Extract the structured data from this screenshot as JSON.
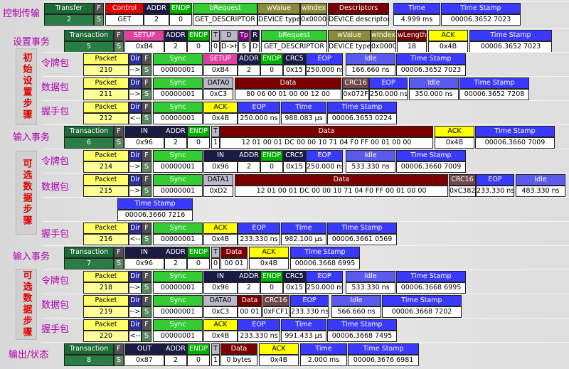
{
  "labels": [
    "控制传输",
    "设置事务",
    "令牌包",
    "数据包",
    "握手包",
    "输入事务",
    "令牌包",
    "数据包",
    "握手包",
    "输入事务",
    "令牌包",
    "数据包",
    "握手包",
    "输出/状态"
  ],
  "notes": [
    "初始设置步骤",
    "可选数据步骤",
    "可选数据步骤"
  ],
  "rows": [
    {
      "cells": [
        {
          "header": "Transfer",
          "value": "2"
        },
        {
          "header": "F",
          "value": "S"
        },
        {
          "header": "Control",
          "value": "GET"
        },
        {
          "header": "ADDR",
          "value": "2"
        },
        {
          "header": "ENDP",
          "value": "0"
        },
        {
          "header": "bRequest",
          "value": "GET_DESCRIPTOR"
        },
        {
          "header": "wValue",
          "value": "DEVICE type"
        },
        {
          "header": "wIndex",
          "value": "0x0000"
        },
        {
          "header": "Descriptors",
          "value": "DEVICE descriptor"
        },
        {
          "header": "Time",
          "value": "4.999 ms"
        },
        {
          "header": "Time Stamp",
          "value": "00006.3652 7023"
        }
      ]
    },
    {
      "cells": [
        {
          "header": "Transaction",
          "value": "5"
        },
        {
          "header": "F",
          "value": "S"
        },
        {
          "header": "SETUP",
          "value": "0xB4"
        },
        {
          "header": "ADDR",
          "value": "2"
        },
        {
          "header": "ENDP",
          "value": "0"
        },
        {
          "header": "T",
          "value": "0"
        },
        {
          "header": "D",
          "value": "D->H"
        },
        {
          "header": "Tp",
          "value": "S"
        },
        {
          "header": "R",
          "value": "D"
        },
        {
          "header": "bRequest",
          "value": "GET_DESCRIPTOR"
        },
        {
          "header": "wValue",
          "value": "DEVICE type"
        },
        {
          "header": "wIndex",
          "value": "0x0000"
        },
        {
          "header": "wLength",
          "value": "18"
        },
        {
          "header": "ACK",
          "value": "0x4B"
        },
        {
          "header": "Time Stamp",
          "value": "00006.3652 7023"
        }
      ]
    },
    {
      "cells": [
        {
          "header": "Packet",
          "value": "210"
        },
        {
          "header": "Dir",
          "value": "-->"
        },
        {
          "header": "F",
          "value": "S"
        },
        {
          "header": "Sync",
          "value": "00000001"
        },
        {
          "header": "SETUP",
          "value": "0xB4"
        },
        {
          "header": "ADDR",
          "value": "2"
        },
        {
          "header": "ENDP",
          "value": "0"
        },
        {
          "header": "CRC5",
          "value": "0x15"
        },
        {
          "header": "EOP",
          "value": "250.000 ns"
        },
        {
          "header": "Idle",
          "value": "166.660 ns"
        },
        {
          "header": "Time Stamp",
          "value": "00006.3652 7023"
        }
      ]
    },
    {
      "cells": [
        {
          "header": "Packet",
          "value": "211"
        },
        {
          "header": "Dir",
          "value": "-->"
        },
        {
          "header": "F",
          "value": "S"
        },
        {
          "header": "Sync",
          "value": "00000001"
        },
        {
          "header": "DATA0",
          "value": "0xC3"
        },
        {
          "header": "Data",
          "value": "80 06 00 01 00 00 12 00"
        },
        {
          "header": "CRC16",
          "value": "0x072F"
        },
        {
          "header": "EOP",
          "value": "250.000 ns"
        },
        {
          "header": "Idle",
          "value": "350.000 ns"
        },
        {
          "header": "Time Stamp",
          "value": "00006.3652 7208"
        }
      ]
    },
    {
      "cells": [
        {
          "header": "Packet",
          "value": "212"
        },
        {
          "header": "Dir",
          "value": "<--"
        },
        {
          "header": "F",
          "value": "S"
        },
        {
          "header": "Sync",
          "value": "00000001"
        },
        {
          "header": "ACK",
          "value": "0x4B"
        },
        {
          "header": "EOP",
          "value": "250.000 ns"
        },
        {
          "header": "Time",
          "value": "988.083 µs"
        },
        {
          "header": "Time Stamp",
          "value": "00006.3653 0224"
        }
      ]
    },
    {
      "cells": [
        {
          "header": "Transaction",
          "value": "6"
        },
        {
          "header": "F",
          "value": "S"
        },
        {
          "header": "IN",
          "value": "0x96"
        },
        {
          "header": "ADDR",
          "value": "2"
        },
        {
          "header": "ENDP",
          "value": "0"
        },
        {
          "header": "T",
          "value": "1"
        },
        {
          "header": "Data",
          "value": "12 01 00 01 DC 00 00 10 71 04 F0 FF 00 01 00 00"
        },
        {
          "header": "ACK",
          "value": "0x4B"
        },
        {
          "header": "Time Stamp",
          "value": "00006.3660 7009"
        }
      ]
    },
    {
      "cells": [
        {
          "header": "Packet",
          "value": "214"
        },
        {
          "header": "Dir",
          "value": "-->"
        },
        {
          "header": "F",
          "value": "S"
        },
        {
          "header": "Sync",
          "value": "00000001"
        },
        {
          "header": "IN",
          "value": "0x96"
        },
        {
          "header": "ADDR",
          "value": "2"
        },
        {
          "header": "ENDP",
          "value": "0"
        },
        {
          "header": "CRC5",
          "value": "0x15"
        },
        {
          "header": "EOP",
          "value": "250.000 ns"
        },
        {
          "header": "Idle",
          "value": "533.330 ns"
        },
        {
          "header": "Time Stamp",
          "value": "00006.3660 7009"
        }
      ]
    },
    {
      "cells": [
        {
          "header": "Packet",
          "value": "215"
        },
        {
          "header": "Dir",
          "value": "-->"
        },
        {
          "header": "F",
          "value": "S"
        },
        {
          "header": "Sync",
          "value": "00000001"
        },
        {
          "header": "DATA1",
          "value": "0xD2"
        },
        {
          "header": "Data",
          "value": "12 01 00 01 DC 00 00 10 71 04 F0 FF 00 01 00 00"
        },
        {
          "header": "CRC16",
          "value": "0xC382"
        },
        {
          "header": "EOP",
          "value": "233.330 ns"
        },
        {
          "header": "Idle",
          "value": "483.330 ns"
        }
      ]
    },
    {
      "cells": [
        {
          "header": "Time Stamp",
          "value": "00006.3660 7216"
        }
      ]
    },
    {
      "cells": [
        {
          "header": "Packet",
          "value": "216"
        },
        {
          "header": "Dir",
          "value": "<--"
        },
        {
          "header": "F",
          "value": "S"
        },
        {
          "header": "Sync",
          "value": "00000001"
        },
        {
          "header": "ACK",
          "value": "0x4B"
        },
        {
          "header": "EOP",
          "value": "233.330 ns"
        },
        {
          "header": "Time",
          "value": "982.100 µs"
        },
        {
          "header": "Time Stamp",
          "value": "00006.3661 0569"
        }
      ]
    },
    {
      "cells": [
        {
          "header": "Transaction",
          "value": "7"
        },
        {
          "header": "F",
          "value": "S"
        },
        {
          "header": "IN",
          "value": "0x96"
        },
        {
          "header": "ADDR",
          "value": "2"
        },
        {
          "header": "ENDP",
          "value": "0"
        },
        {
          "header": "T",
          "value": "0"
        },
        {
          "header": "Data",
          "value": "00 01"
        },
        {
          "header": "ACK",
          "value": "0x4B"
        },
        {
          "header": "Time Stamp",
          "value": "00006.3668 6995"
        }
      ]
    },
    {
      "cells": [
        {
          "header": "Packet",
          "value": "218"
        },
        {
          "header": "Dir",
          "value": "-->"
        },
        {
          "header": "F",
          "value": "S"
        },
        {
          "header": "Sync",
          "value": "00000001"
        },
        {
          "header": "IN",
          "value": "0x96"
        },
        {
          "header": "ADDR",
          "value": "2"
        },
        {
          "header": "ENDP",
          "value": "0"
        },
        {
          "header": "CRC5",
          "value": "0x15"
        },
        {
          "header": "EOP",
          "value": "250.000 ns"
        },
        {
          "header": "Idle",
          "value": "533.330 ns"
        },
        {
          "header": "Time Stamp",
          "value": "00006.3668 6995"
        }
      ]
    },
    {
      "cells": [
        {
          "header": "Packet",
          "value": "219"
        },
        {
          "header": "Dir",
          "value": "-->"
        },
        {
          "header": "F",
          "value": "S"
        },
        {
          "header": "Sync",
          "value": "00000001"
        },
        {
          "header": "DATA0",
          "value": "0xC3"
        },
        {
          "header": "Data",
          "value": "00 01"
        },
        {
          "header": "CRC16",
          "value": "0xFCF1"
        },
        {
          "header": "EOP",
          "value": "233.330 ns"
        },
        {
          "header": "Idle",
          "value": "566.660 ns"
        },
        {
          "header": "Time Stamp",
          "value": "00006.3668 7202"
        }
      ]
    },
    {
      "cells": [
        {
          "header": "Packet",
          "value": "220"
        },
        {
          "header": "Dir",
          "value": "<--"
        },
        {
          "header": "F",
          "value": "S"
        },
        {
          "header": "Sync",
          "value": "00000001"
        },
        {
          "header": "ACK",
          "value": "0x4B"
        },
        {
          "header": "EOP",
          "value": "233.330 ns"
        },
        {
          "header": "Time",
          "value": "991.433 µs"
        },
        {
          "header": "Time Stamp",
          "value": "00006.3668 7495"
        }
      ]
    },
    {
      "cells": [
        {
          "header": "Transaction",
          "value": "8"
        },
        {
          "header": "F",
          "value": "S"
        },
        {
          "header": "OUT",
          "value": "0x87"
        },
        {
          "header": "ADDR",
          "value": "2"
        },
        {
          "header": "ENDP",
          "value": "0"
        },
        {
          "header": "T",
          "value": "1"
        },
        {
          "header": "Data",
          "value": "0 bytes"
        },
        {
          "header": "ACK",
          "value": "0x4B"
        },
        {
          "header": "Time",
          "value": "2.000 ms"
        },
        {
          "header": "Time Stamp",
          "value": "00006.3676 6981"
        }
      ]
    }
  ]
}
